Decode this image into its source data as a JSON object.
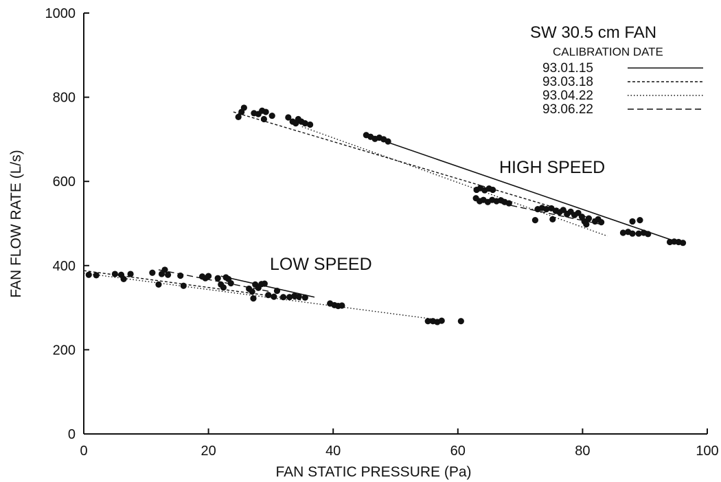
{
  "chart_data": {
    "type": "scatter",
    "xlabel": "FAN STATIC PRESSURE (Pa)",
    "ylabel": "FAN FLOW RATE (L/s)",
    "xlim": [
      0,
      100
    ],
    "ylim": [
      0,
      1000
    ],
    "x_ticks": [
      0,
      20,
      40,
      60,
      80,
      100
    ],
    "y_ticks": [
      0,
      200,
      400,
      600,
      800,
      1000
    ],
    "grid": false,
    "legend": {
      "title": "SW 30.5 cm FAN",
      "subtitle": "CALIBRATION DATE",
      "placement": "top-right",
      "entries": [
        {
          "label": "93.01.15",
          "style": "solid"
        },
        {
          "label": "93.03.18",
          "style": "dashed-fine"
        },
        {
          "label": "93.04.22",
          "style": "dotted"
        },
        {
          "label": "93.06.22",
          "style": "dashed"
        }
      ]
    },
    "annotations": [
      "HIGH SPEED",
      "LOW SPEED"
    ],
    "fit_lines": [
      {
        "group": "high",
        "style": "solid",
        "x": [
          45,
          96
        ],
        "y": [
          712,
          452
        ]
      },
      {
        "group": "high",
        "style": "dashed-fine",
        "x": [
          24,
          83
        ],
        "y": [
          765,
          505
        ]
      },
      {
        "group": "high",
        "style": "dotted",
        "x": [
          35,
          84
        ],
        "y": [
          730,
          470
        ]
      },
      {
        "group": "high",
        "style": "dashed",
        "x": [
          64,
          83
        ],
        "y": [
          557,
          498
        ]
      },
      {
        "group": "low",
        "style": "solid",
        "x": [
          22,
          37
        ],
        "y": [
          375,
          325
        ]
      },
      {
        "group": "low",
        "style": "dashed-fine",
        "x": [
          0,
          35
        ],
        "y": [
          388,
          318
        ]
      },
      {
        "group": "low",
        "style": "dotted",
        "x": [
          0,
          56
        ],
        "y": [
          382,
          273
        ]
      },
      {
        "group": "low",
        "style": "dashed",
        "x": [
          12,
          30
        ],
        "y": [
          390,
          338
        ]
      }
    ],
    "points": [
      {
        "x": 24.8,
        "y": 753
      },
      {
        "x": 25.3,
        "y": 765
      },
      {
        "x": 25.7,
        "y": 775
      },
      {
        "x": 27.3,
        "y": 762
      },
      {
        "x": 28.0,
        "y": 760
      },
      {
        "x": 28.6,
        "y": 768
      },
      {
        "x": 28.9,
        "y": 748
      },
      {
        "x": 29.2,
        "y": 765
      },
      {
        "x": 30.2,
        "y": 756
      },
      {
        "x": 32.8,
        "y": 752
      },
      {
        "x": 33.5,
        "y": 742
      },
      {
        "x": 34.0,
        "y": 738
      },
      {
        "x": 34.4,
        "y": 748
      },
      {
        "x": 34.9,
        "y": 742
      },
      {
        "x": 35.5,
        "y": 738
      },
      {
        "x": 36.3,
        "y": 735
      },
      {
        "x": 45.3,
        "y": 710
      },
      {
        "x": 46.0,
        "y": 706
      },
      {
        "x": 46.7,
        "y": 701
      },
      {
        "x": 47.4,
        "y": 704
      },
      {
        "x": 48.1,
        "y": 700
      },
      {
        "x": 48.8,
        "y": 695
      },
      {
        "x": 63.0,
        "y": 580
      },
      {
        "x": 63.6,
        "y": 584
      },
      {
        "x": 64.3,
        "y": 579
      },
      {
        "x": 65.0,
        "y": 583
      },
      {
        "x": 65.6,
        "y": 580
      },
      {
        "x": 62.9,
        "y": 560
      },
      {
        "x": 63.5,
        "y": 553
      },
      {
        "x": 64.1,
        "y": 556
      },
      {
        "x": 64.8,
        "y": 551
      },
      {
        "x": 65.5,
        "y": 556
      },
      {
        "x": 66.2,
        "y": 553
      },
      {
        "x": 66.9,
        "y": 555
      },
      {
        "x": 67.5,
        "y": 551
      },
      {
        "x": 68.2,
        "y": 548
      },
      {
        "x": 72.4,
        "y": 508
      },
      {
        "x": 72.8,
        "y": 534
      },
      {
        "x": 73.5,
        "y": 537
      },
      {
        "x": 74.2,
        "y": 534
      },
      {
        "x": 75.0,
        "y": 536
      },
      {
        "x": 75.7,
        "y": 530
      },
      {
        "x": 76.3,
        "y": 527
      },
      {
        "x": 76.9,
        "y": 532
      },
      {
        "x": 77.5,
        "y": 522
      },
      {
        "x": 78.1,
        "y": 528
      },
      {
        "x": 78.7,
        "y": 520
      },
      {
        "x": 79.3,
        "y": 525
      },
      {
        "x": 79.9,
        "y": 516
      },
      {
        "x": 80.3,
        "y": 505
      },
      {
        "x": 80.6,
        "y": 498
      },
      {
        "x": 81.0,
        "y": 512
      },
      {
        "x": 75.2,
        "y": 510
      },
      {
        "x": 82.0,
        "y": 505
      },
      {
        "x": 82.5,
        "y": 510
      },
      {
        "x": 83.0,
        "y": 503
      },
      {
        "x": 86.5,
        "y": 478
      },
      {
        "x": 87.3,
        "y": 480
      },
      {
        "x": 88.0,
        "y": 476
      },
      {
        "x": 88.0,
        "y": 505
      },
      {
        "x": 89.2,
        "y": 508
      },
      {
        "x": 89.0,
        "y": 476
      },
      {
        "x": 89.8,
        "y": 478
      },
      {
        "x": 90.5,
        "y": 475
      },
      {
        "x": 94.0,
        "y": 456
      },
      {
        "x": 94.7,
        "y": 457
      },
      {
        "x": 95.4,
        "y": 456
      },
      {
        "x": 96.1,
        "y": 454
      },
      {
        "x": 0.8,
        "y": 378
      },
      {
        "x": 2.0,
        "y": 377
      },
      {
        "x": 5.0,
        "y": 380
      },
      {
        "x": 6.0,
        "y": 378
      },
      {
        "x": 6.4,
        "y": 368
      },
      {
        "x": 7.5,
        "y": 380
      },
      {
        "x": 11.0,
        "y": 383
      },
      {
        "x": 12.0,
        "y": 355
      },
      {
        "x": 12.5,
        "y": 380
      },
      {
        "x": 13.0,
        "y": 390
      },
      {
        "x": 13.5,
        "y": 378
      },
      {
        "x": 15.5,
        "y": 376
      },
      {
        "x": 16.0,
        "y": 352
      },
      {
        "x": 19.0,
        "y": 374
      },
      {
        "x": 19.5,
        "y": 370
      },
      {
        "x": 20.0,
        "y": 375
      },
      {
        "x": 21.5,
        "y": 370
      },
      {
        "x": 22.0,
        "y": 355
      },
      {
        "x": 22.4,
        "y": 348
      },
      {
        "x": 22.8,
        "y": 372
      },
      {
        "x": 23.2,
        "y": 368
      },
      {
        "x": 23.6,
        "y": 358
      },
      {
        "x": 26.5,
        "y": 345
      },
      {
        "x": 27.0,
        "y": 338
      },
      {
        "x": 27.2,
        "y": 322
      },
      {
        "x": 27.5,
        "y": 355
      },
      {
        "x": 28.0,
        "y": 347
      },
      {
        "x": 28.5,
        "y": 356
      },
      {
        "x": 29.0,
        "y": 357
      },
      {
        "x": 29.6,
        "y": 330
      },
      {
        "x": 30.5,
        "y": 326
      },
      {
        "x": 31.0,
        "y": 340
      },
      {
        "x": 32.0,
        "y": 325
      },
      {
        "x": 33.0,
        "y": 325
      },
      {
        "x": 33.8,
        "y": 328
      },
      {
        "x": 34.5,
        "y": 326
      },
      {
        "x": 35.5,
        "y": 324
      },
      {
        "x": 39.5,
        "y": 310
      },
      {
        "x": 40.2,
        "y": 306
      },
      {
        "x": 40.8,
        "y": 304
      },
      {
        "x": 41.4,
        "y": 305
      },
      {
        "x": 55.2,
        "y": 268
      },
      {
        "x": 56.0,
        "y": 268
      },
      {
        "x": 56.7,
        "y": 266
      },
      {
        "x": 57.4,
        "y": 269
      },
      {
        "x": 60.5,
        "y": 268
      }
    ]
  }
}
